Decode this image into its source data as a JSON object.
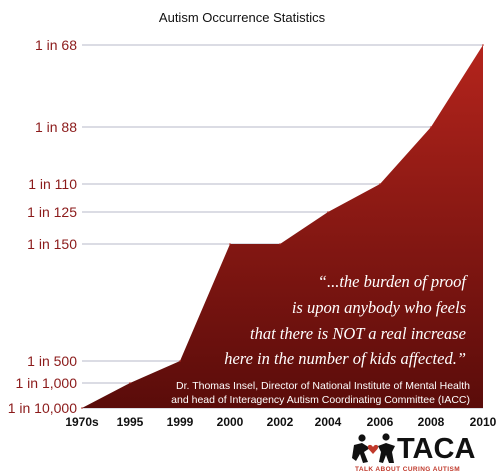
{
  "chart_data": {
    "type": "area",
    "title": "Autism Occurrence Statistics",
    "xlabel": "",
    "ylabel": "",
    "categories": [
      "1970s",
      "1995",
      "1999",
      "2000",
      "2002",
      "2004",
      "2006",
      "2008",
      "2010"
    ],
    "y_ticks": [
      "1 in 68",
      "1 in 88",
      "1 in 110",
      "1 in 125",
      "1 in 150",
      "1 in 500",
      "1 in 1,000",
      "1 in 10,000"
    ],
    "points": [
      {
        "x": "1970s",
        "y": "1 in 10,000"
      },
      {
        "x": "1995",
        "y": "1 in 1,000"
      },
      {
        "x": "1999",
        "y": "1 in 500"
      },
      {
        "x": "2000",
        "y": "1 in 150"
      },
      {
        "x": "2002",
        "y": "1 in 150"
      },
      {
        "x": "2004",
        "y": "1 in 125"
      },
      {
        "x": "2006",
        "y": "1 in 110"
      },
      {
        "x": "2008",
        "y": "1 in 88"
      },
      {
        "x": "2010",
        "y": "1 in 68"
      }
    ],
    "grid": true,
    "colors": {
      "area_top": "#b4241c",
      "area_bottom": "#5a0c0a",
      "tick_label": "#8b1a1a",
      "grid": "#b7b9c9"
    },
    "annotation": {
      "quote_lines": [
        "“...the burden of proof",
        "is upon anybody who feels",
        "that there is NOT a real increase",
        "here in the number of kids affected.”"
      ],
      "attribution_lines": [
        "Dr. Thomas Insel, Director of National Institute of Mental Health",
        "and head of Interagency Autism Coordinating Committee (IACC)"
      ]
    }
  },
  "logo": {
    "name": "TACA",
    "tagline": "TALK ABOUT CURING AUTISM",
    "colors": {
      "dark": "#111111",
      "red": "#c0392b"
    }
  }
}
